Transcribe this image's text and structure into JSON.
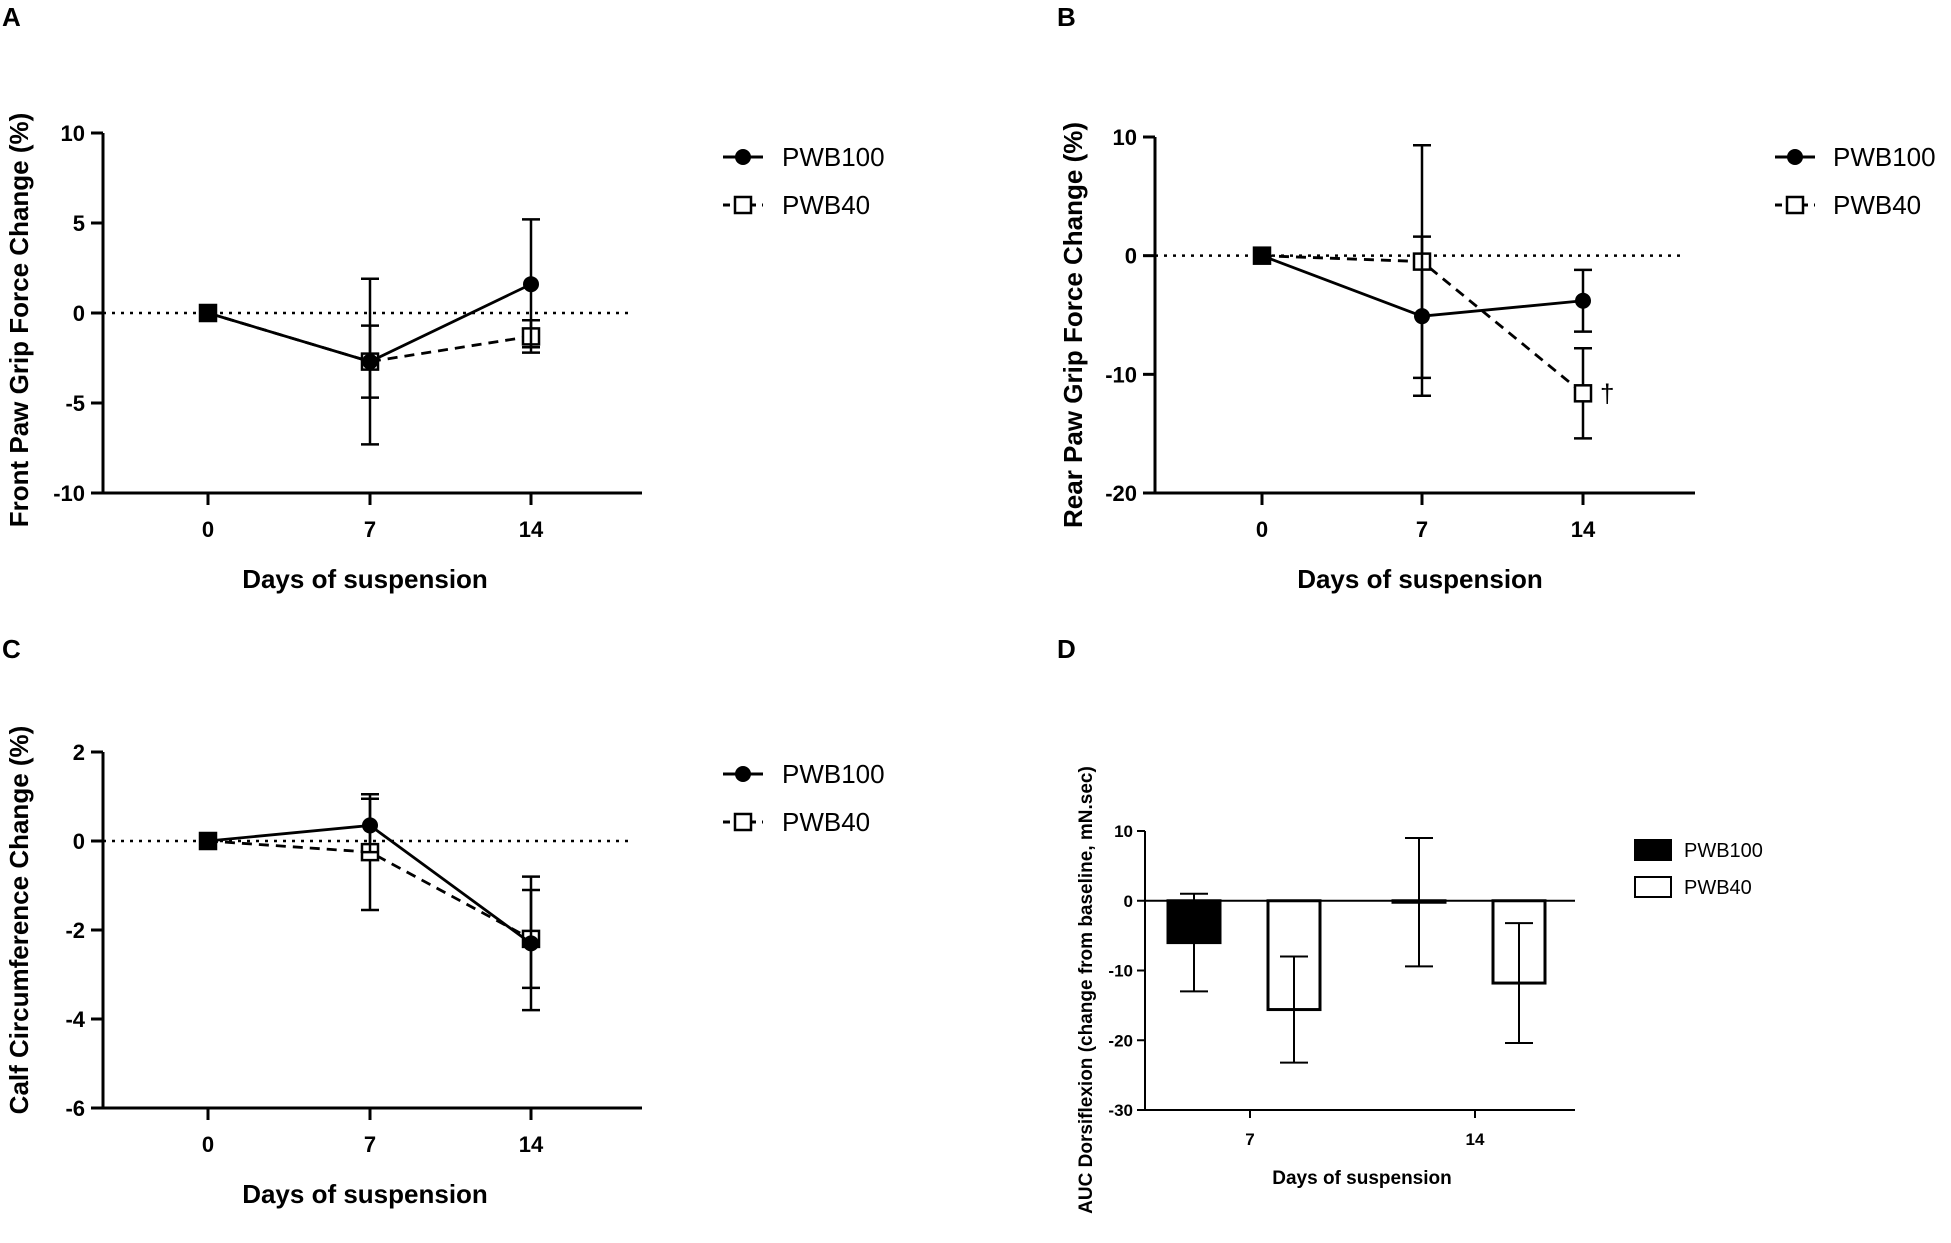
{
  "chart_data": [
    {
      "panel": "A",
      "type": "line",
      "x": [
        0,
        7,
        14
      ],
      "xlabel": "Days of suspension",
      "ylabel": "Front Paw Grip Force Change (%)",
      "ylim": [
        -10,
        10
      ],
      "yticks": [
        10,
        5,
        0,
        -5,
        -10
      ],
      "reference_line": 0,
      "series": [
        {
          "name": "PWB100",
          "marker": "filled-circle",
          "line": "solid",
          "values": [
            0,
            -2.7,
            1.6
          ],
          "err_low": [
            0,
            4.6,
            3.5
          ],
          "err_high": [
            0,
            4.6,
            3.6
          ]
        },
        {
          "name": "PWB40",
          "marker": "open-square",
          "line": "dashed",
          "values": [
            0,
            -2.7,
            -1.3
          ],
          "err_low": [
            0,
            2.0,
            0.9
          ],
          "err_high": [
            0,
            2.0,
            0.9
          ]
        }
      ]
    },
    {
      "panel": "B",
      "type": "line",
      "x": [
        0,
        7,
        14
      ],
      "xlabel": "Days of suspension",
      "ylabel": "Rear Paw Grip Force Change (%)",
      "ylim": [
        -20,
        10
      ],
      "yticks": [
        10,
        0,
        -10,
        -20
      ],
      "reference_line": 0,
      "annotation": "†",
      "series": [
        {
          "name": "PWB100",
          "marker": "filled-circle",
          "line": "solid",
          "values": [
            0,
            -5.1,
            -3.8
          ],
          "err_low": [
            0,
            6.7,
            2.6
          ],
          "err_high": [
            0,
            6.7,
            2.6
          ]
        },
        {
          "name": "PWB40",
          "marker": "open-square",
          "line": "dashed",
          "values": [
            0,
            -0.5,
            -11.6
          ],
          "err_low": [
            0,
            9.8,
            3.8
          ],
          "err_high": [
            0,
            9.8,
            3.8
          ]
        }
      ]
    },
    {
      "panel": "C",
      "type": "line",
      "x": [
        0,
        7,
        14
      ],
      "xlabel": "Days of suspension",
      "ylabel": "Calf Circumference Change (%)",
      "ylim": [
        -6,
        2
      ],
      "yticks": [
        2,
        0,
        -2,
        -4,
        -6
      ],
      "reference_line": 0,
      "series": [
        {
          "name": "PWB100",
          "marker": "filled-circle",
          "line": "solid",
          "values": [
            0,
            0.35,
            -2.3
          ],
          "err_low": [
            0,
            0.6,
            1.5
          ],
          "err_high": [
            0,
            0.6,
            1.5
          ]
        },
        {
          "name": "PWB40",
          "marker": "open-square",
          "line": "dashed",
          "values": [
            0,
            -0.25,
            -2.2
          ],
          "err_low": [
            0,
            1.3,
            1.1
          ],
          "err_high": [
            0,
            1.3,
            1.1
          ]
        }
      ]
    },
    {
      "panel": "D",
      "type": "bar",
      "categories": [
        "7",
        "14"
      ],
      "xlabel": "Days of suspension",
      "ylabel": "AUC Dorsiflexion (change from baseline, mN.sec)",
      "ylim": [
        -30,
        10
      ],
      "yticks": [
        10,
        0,
        -10,
        -20,
        -30
      ],
      "series": [
        {
          "name": "PWB100",
          "fill": "filled",
          "values": [
            -6,
            -0.2
          ],
          "err": [
            7,
            9.2
          ]
        },
        {
          "name": "PWB40",
          "fill": "open",
          "values": [
            -15.6,
            -11.8
          ],
          "err": [
            7.6,
            8.6
          ]
        }
      ]
    }
  ],
  "colors": {
    "ink": "#000000",
    "background": "#ffffff"
  }
}
